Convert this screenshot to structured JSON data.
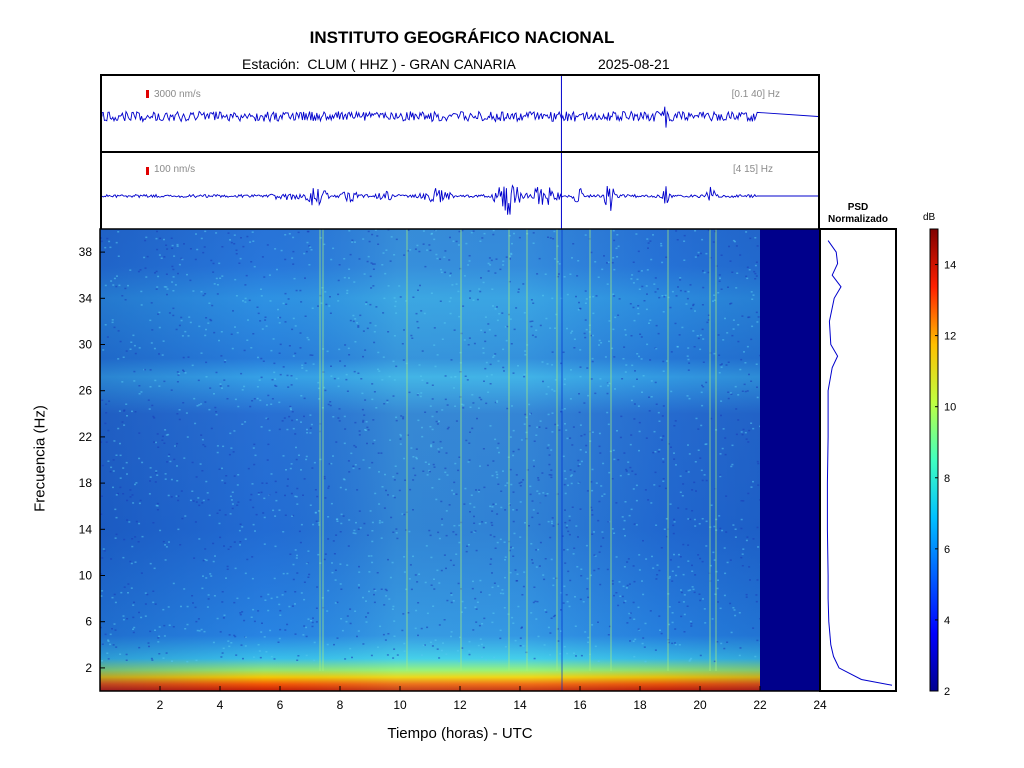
{
  "header": {
    "title": "INSTITUTO GEOGRÁFICO NACIONAL",
    "station_line": "Estación:  CLUM ( HHZ ) - GRAN CANARIA",
    "date": "2025-08-21"
  },
  "panels": {
    "broadband": {
      "amplitude_label": "3000 nm/s",
      "band_label": "[0.1 40] Hz"
    },
    "filtered": {
      "amplitude_label": "100 nm/s",
      "band_label": "[4 15] Hz"
    }
  },
  "psd": {
    "title_line1": "PSD",
    "title_line2": "Normalizado"
  },
  "colorbar": {
    "unit": "dB",
    "min": 2,
    "max": 15,
    "ticks": [
      2,
      4,
      6,
      8,
      10,
      12,
      14
    ]
  },
  "colors": {
    "trace": "#0000cc",
    "no_data": "#00008b",
    "axis": "#000000",
    "label_gray": "#8a8a8a",
    "scale_mark": "#e00000"
  },
  "chart_data": {
    "type": "heatmap",
    "xlabel": "Tiempo (horas) - UTC",
    "ylabel": "Frecuencia  (Hz)",
    "xlim": [
      0,
      24
    ],
    "ylim": [
      0,
      40
    ],
    "x_ticks": [
      2,
      4,
      6,
      8,
      10,
      12,
      14,
      16,
      18,
      20,
      22,
      24
    ],
    "y_ticks": [
      2,
      6,
      10,
      14,
      18,
      22,
      26,
      30,
      34,
      38
    ],
    "data_end_hour": 22,
    "trace_marker_hour": 15.4,
    "psd_profile": {
      "freq_hz": [
        0.5,
        1,
        2,
        3,
        4,
        6,
        8,
        10,
        14,
        18,
        22,
        26,
        28,
        29,
        30,
        32,
        34,
        35,
        36,
        37,
        38,
        39
      ],
      "normalized": [
        1.0,
        0.55,
        0.22,
        0.14,
        0.1,
        0.07,
        0.06,
        0.06,
        0.05,
        0.05,
        0.06,
        0.06,
        0.12,
        0.2,
        0.1,
        0.08,
        0.15,
        0.25,
        0.12,
        0.2,
        0.18,
        0.06
      ]
    },
    "colormap": [
      "#00008f",
      "#0000ff",
      "#0080ff",
      "#00ffff",
      "#80ff80",
      "#ffff00",
      "#ff8000",
      "#ff0000",
      "#800000"
    ]
  }
}
